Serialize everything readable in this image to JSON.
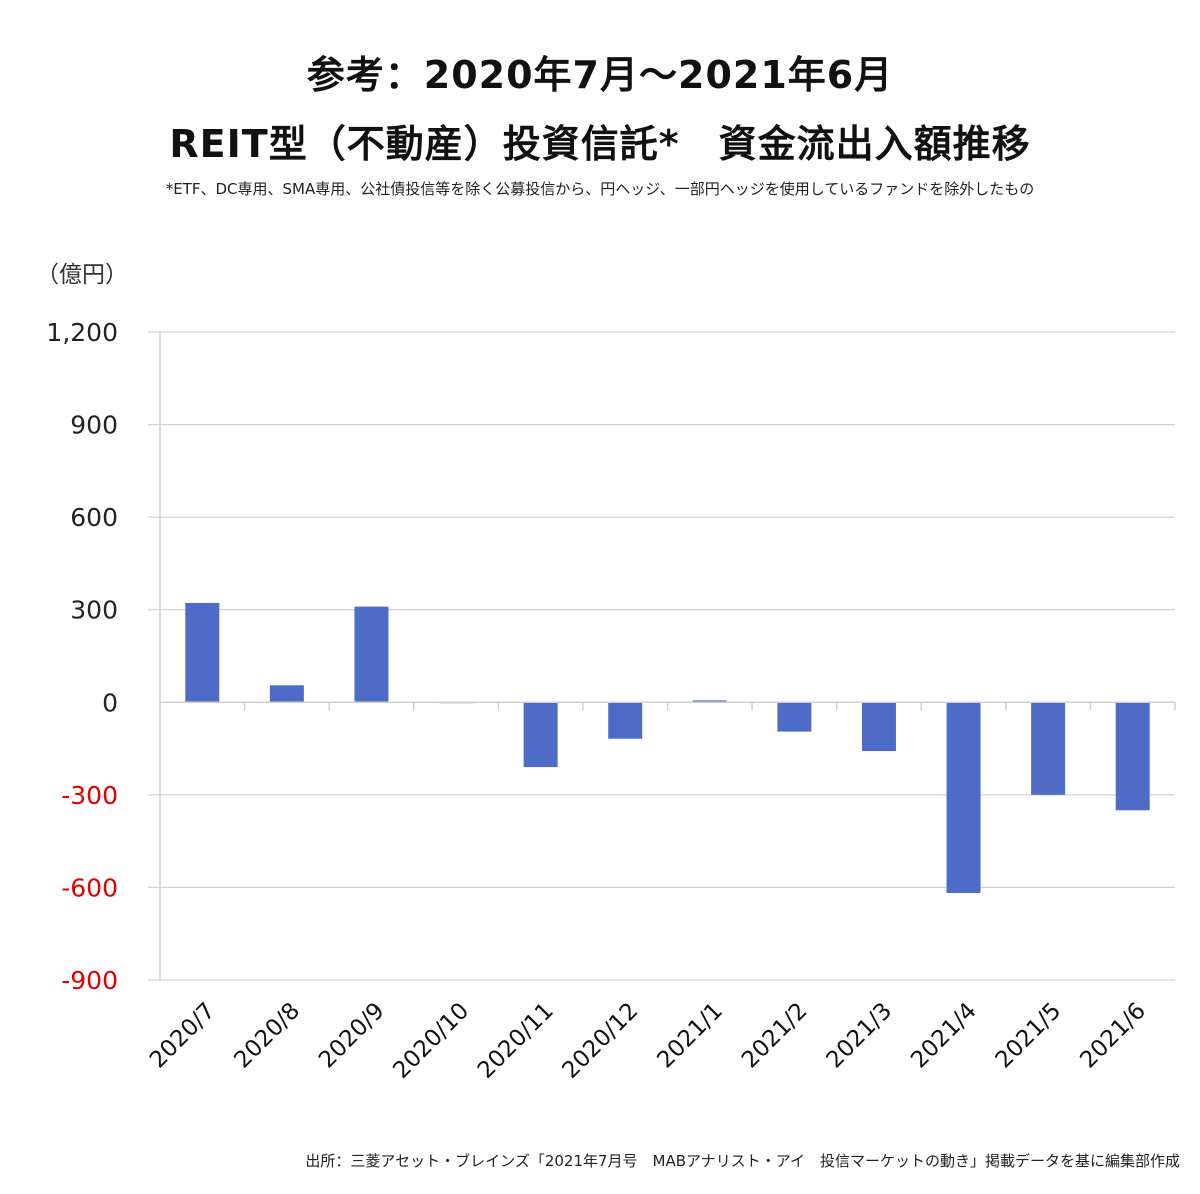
{
  "header": {
    "title_line1": "参考：2020年7月～2021年6月",
    "title_line2": "REIT型（不動産）投資信託*　資金流出入額推移",
    "note": "*ETF、DC専用、SMA専用、公社債投信等を除く公募投信から、円ヘッジ、一部円ヘッジを使用しているファンドを除外したもの"
  },
  "footer": {
    "source": "出所：三菱アセット・ブレインズ「2021年7月号　MABアナリスト・アイ　投信マーケットの動き」掲載データを基に編集部作成"
  },
  "chart_data": {
    "type": "bar",
    "title": "参考：2020年7月～2021年6月 REIT型（不動産）投資信託*　資金流出入額推移",
    "ylabel": "（億円）",
    "xlabel": "",
    "categories": [
      "2020/7",
      "2020/8",
      "2020/9",
      "2020/10",
      "2020/11",
      "2020/12",
      "2021/1",
      "2021/2",
      "2021/3",
      "2021/4",
      "2021/5",
      "2021/6"
    ],
    "values": [
      322,
      55,
      310,
      2,
      -210,
      -118,
      6,
      -95,
      -158,
      -618,
      -300,
      -350
    ],
    "ylim": [
      -900,
      1200
    ],
    "yticks": [
      {
        "value": 1200,
        "label": "1,200"
      },
      {
        "value": 900,
        "label": "900"
      },
      {
        "value": 600,
        "label": "600"
      },
      {
        "value": 300,
        "label": "300"
      },
      {
        "value": 0,
        "label": "0"
      },
      {
        "value": -300,
        "label": "-300"
      },
      {
        "value": -600,
        "label": "-600"
      },
      {
        "value": -900,
        "label": "-900"
      }
    ],
    "grid": true,
    "legend": "none",
    "colors": {
      "bar": "#4f6bc8",
      "grid": "#c8c8c8",
      "axis": "#d0d0d0",
      "positive_tick": "#222222",
      "negative_tick": "#e00000"
    }
  }
}
